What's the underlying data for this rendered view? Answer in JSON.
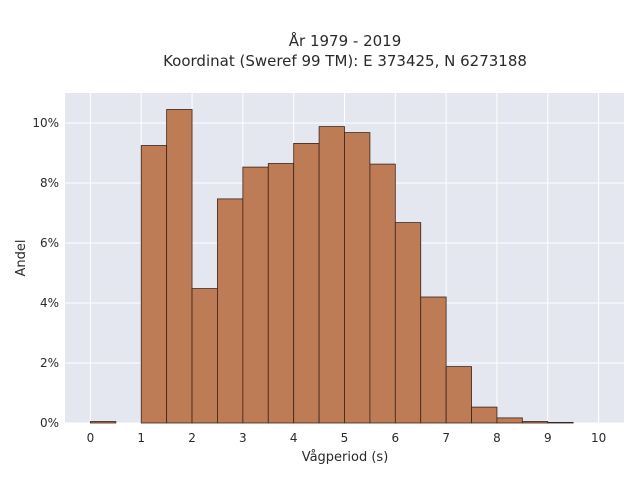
{
  "chart_data": {
    "type": "bar",
    "title": [
      "År 1979 - 2019",
      "Koordinat (Sweref 99 TM): E 373425, N 6273188"
    ],
    "xlabel": "Vågperiod (s)",
    "ylabel": "Andel",
    "xlim": [
      -0.5,
      10.5
    ],
    "ylim": [
      0,
      11
    ],
    "x_ticks": [
      0,
      1,
      2,
      3,
      4,
      5,
      6,
      7,
      8,
      9,
      10
    ],
    "y_ticks": [
      0,
      2,
      4,
      6,
      8,
      10
    ],
    "y_tick_labels": [
      "0%",
      "2%",
      "4%",
      "6%",
      "8%",
      "10%"
    ],
    "bin_width": 0.5,
    "bins": [
      {
        "start": 0.0,
        "value": 0.05
      },
      {
        "start": 0.5,
        "value": 0.0
      },
      {
        "start": 1.0,
        "value": 9.25
      },
      {
        "start": 1.5,
        "value": 10.45
      },
      {
        "start": 2.0,
        "value": 4.48
      },
      {
        "start": 2.5,
        "value": 7.47
      },
      {
        "start": 3.0,
        "value": 8.53
      },
      {
        "start": 3.5,
        "value": 8.65
      },
      {
        "start": 4.0,
        "value": 9.32
      },
      {
        "start": 4.5,
        "value": 9.88
      },
      {
        "start": 5.0,
        "value": 9.68
      },
      {
        "start": 5.5,
        "value": 8.63
      },
      {
        "start": 6.0,
        "value": 6.68
      },
      {
        "start": 6.5,
        "value": 4.2
      },
      {
        "start": 7.0,
        "value": 1.88
      },
      {
        "start": 7.5,
        "value": 0.53
      },
      {
        "start": 8.0,
        "value": 0.17
      },
      {
        "start": 8.5,
        "value": 0.05
      },
      {
        "start": 9.0,
        "value": 0.02
      }
    ],
    "grid": true,
    "colors": {
      "bar": "#bd7b56",
      "bar_edge": "#3b2418",
      "plot_bg": "#e5e7f0",
      "grid": "#ffffff"
    }
  }
}
